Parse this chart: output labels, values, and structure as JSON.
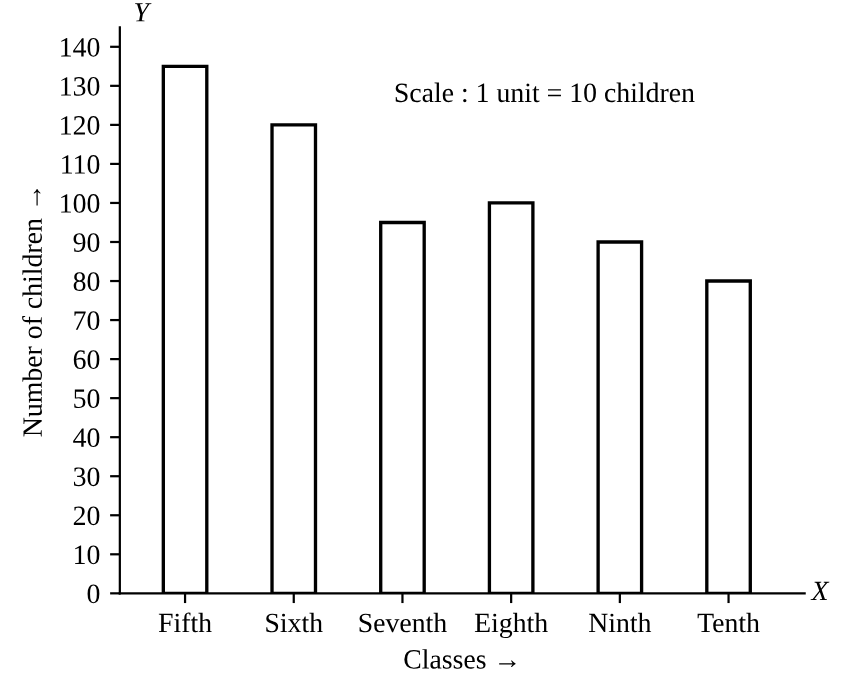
{
  "chart_data": {
    "type": "bar",
    "categories": [
      "Fifth",
      "Sixth",
      "Seventh",
      "Eighth",
      "Ninth",
      "Tenth"
    ],
    "values": [
      135,
      120,
      95,
      100,
      90,
      80
    ],
    "color": "#ffffff",
    "xlabel": "Classes →",
    "ylabel": "Number of children →",
    "annotations": [
      "Scale : 1 unit = 10 children",
      "Y",
      "X"
    ],
    "ylim": [
      0,
      145
    ],
    "yticks": [
      0,
      10,
      20,
      30,
      40,
      50,
      60,
      70,
      80,
      90,
      100,
      110,
      120,
      130,
      140
    ],
    "grid": false,
    "legend": false
  }
}
